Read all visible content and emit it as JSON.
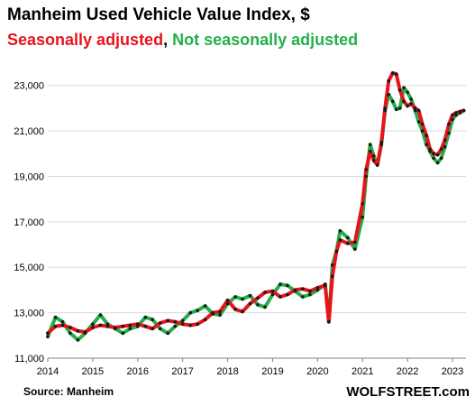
{
  "header": {
    "title": "Manheim Used Vehicle Value Index, $",
    "subtitle_sa": "Seasonally adjusted",
    "subtitle_sep": ", ",
    "subtitle_nsa": "Not seasonally adjusted"
  },
  "footer": {
    "source": "Source: Manheim",
    "brand": "WOLFSTREET.com"
  },
  "colors": {
    "sa": "#e8141b",
    "nsa": "#22b04a",
    "marker": "#1a1a1a",
    "grid": "#d9d9d9"
  },
  "chart_data": {
    "type": "line",
    "title": "Manheim Used Vehicle Value Index, $",
    "xlabel": "",
    "ylabel": "",
    "x_ticks": [
      "2014",
      "2015",
      "2016",
      "2017",
      "2018",
      "2019",
      "2020",
      "2021",
      "2022",
      "2023"
    ],
    "y_ticks": [
      "11,000",
      "13,000",
      "15,000",
      "17,000",
      "19,000",
      "21,000",
      "23,000"
    ],
    "ylim": [
      11000,
      24300
    ],
    "xlim": [
      2014.0,
      2023.3
    ],
    "grid": "horizontal",
    "series": [
      {
        "name": "Seasonally adjusted",
        "color": "#e8141b",
        "x": [
          2014.0,
          2014.17,
          2014.33,
          2014.5,
          2014.67,
          2014.83,
          2015.0,
          2015.17,
          2015.33,
          2015.5,
          2015.67,
          2015.83,
          2016.0,
          2016.17,
          2016.33,
          2016.5,
          2016.67,
          2016.83,
          2017.0,
          2017.17,
          2017.33,
          2017.5,
          2017.67,
          2017.83,
          2018.0,
          2018.17,
          2018.33,
          2018.5,
          2018.67,
          2018.83,
          2019.0,
          2019.17,
          2019.33,
          2019.5,
          2019.67,
          2019.83,
          2020.0,
          2020.17,
          2020.25,
          2020.33,
          2020.42,
          2020.5,
          2020.67,
          2020.83,
          2021.0,
          2021.08,
          2021.17,
          2021.25,
          2021.33,
          2021.42,
          2021.5,
          2021.58,
          2021.67,
          2021.75,
          2021.83,
          2021.92,
          2022.0,
          2022.08,
          2022.17,
          2022.25,
          2022.33,
          2022.42,
          2022.5,
          2022.58,
          2022.67,
          2022.75,
          2022.83,
          2022.92,
          2023.0,
          2023.08,
          2023.17,
          2023.25
        ],
        "values": [
          12100,
          12400,
          12450,
          12350,
          12200,
          12150,
          12350,
          12450,
          12400,
          12350,
          12400,
          12450,
          12500,
          12400,
          12300,
          12550,
          12650,
          12600,
          12500,
          12450,
          12500,
          12700,
          13000,
          13050,
          13550,
          13150,
          13050,
          13400,
          13650,
          13900,
          13950,
          13700,
          13800,
          14000,
          14050,
          13950,
          14100,
          14200,
          12600,
          14600,
          15700,
          16200,
          16050,
          16100,
          17800,
          19300,
          20100,
          19700,
          19500,
          20500,
          22000,
          23200,
          23550,
          23500,
          22800,
          22300,
          22100,
          22200,
          22000,
          21900,
          21300,
          20800,
          20200,
          20000,
          19950,
          20200,
          20600,
          21300,
          21700,
          21800,
          21850,
          21900
        ]
      },
      {
        "name": "Not seasonally adjusted",
        "color": "#22b04a",
        "x": [
          2014.0,
          2014.17,
          2014.33,
          2014.5,
          2014.67,
          2014.83,
          2015.0,
          2015.17,
          2015.33,
          2015.5,
          2015.67,
          2015.83,
          2016.0,
          2016.17,
          2016.33,
          2016.5,
          2016.67,
          2016.83,
          2017.0,
          2017.17,
          2017.33,
          2017.5,
          2017.67,
          2017.83,
          2018.0,
          2018.17,
          2018.33,
          2018.5,
          2018.67,
          2018.83,
          2019.0,
          2019.17,
          2019.33,
          2019.5,
          2019.67,
          2019.83,
          2020.0,
          2020.17,
          2020.25,
          2020.33,
          2020.42,
          2020.5,
          2020.67,
          2020.83,
          2021.0,
          2021.08,
          2021.17,
          2021.25,
          2021.33,
          2021.42,
          2021.5,
          2021.58,
          2021.67,
          2021.75,
          2021.83,
          2021.92,
          2022.0,
          2022.08,
          2022.17,
          2022.25,
          2022.33,
          2022.42,
          2022.5,
          2022.58,
          2022.67,
          2022.75,
          2022.83,
          2022.92,
          2023.0,
          2023.08,
          2023.17,
          2023.25
        ],
        "values": [
          11950,
          12800,
          12600,
          12100,
          11800,
          12100,
          12500,
          12900,
          12500,
          12300,
          12100,
          12300,
          12400,
          12800,
          12700,
          12300,
          12100,
          12400,
          12650,
          13000,
          13100,
          13300,
          12950,
          12900,
          13400,
          13700,
          13600,
          13750,
          13350,
          13250,
          13800,
          14250,
          14200,
          13950,
          13700,
          13800,
          14000,
          14250,
          12600,
          15100,
          15700,
          16600,
          16300,
          15800,
          17200,
          19000,
          20400,
          19900,
          19500,
          20400,
          21900,
          22600,
          22300,
          21950,
          22000,
          22900,
          22700,
          22400,
          21900,
          21400,
          21000,
          20400,
          20100,
          19800,
          19600,
          19800,
          20300,
          20900,
          21500,
          21700,
          21800,
          21900
        ]
      }
    ]
  }
}
